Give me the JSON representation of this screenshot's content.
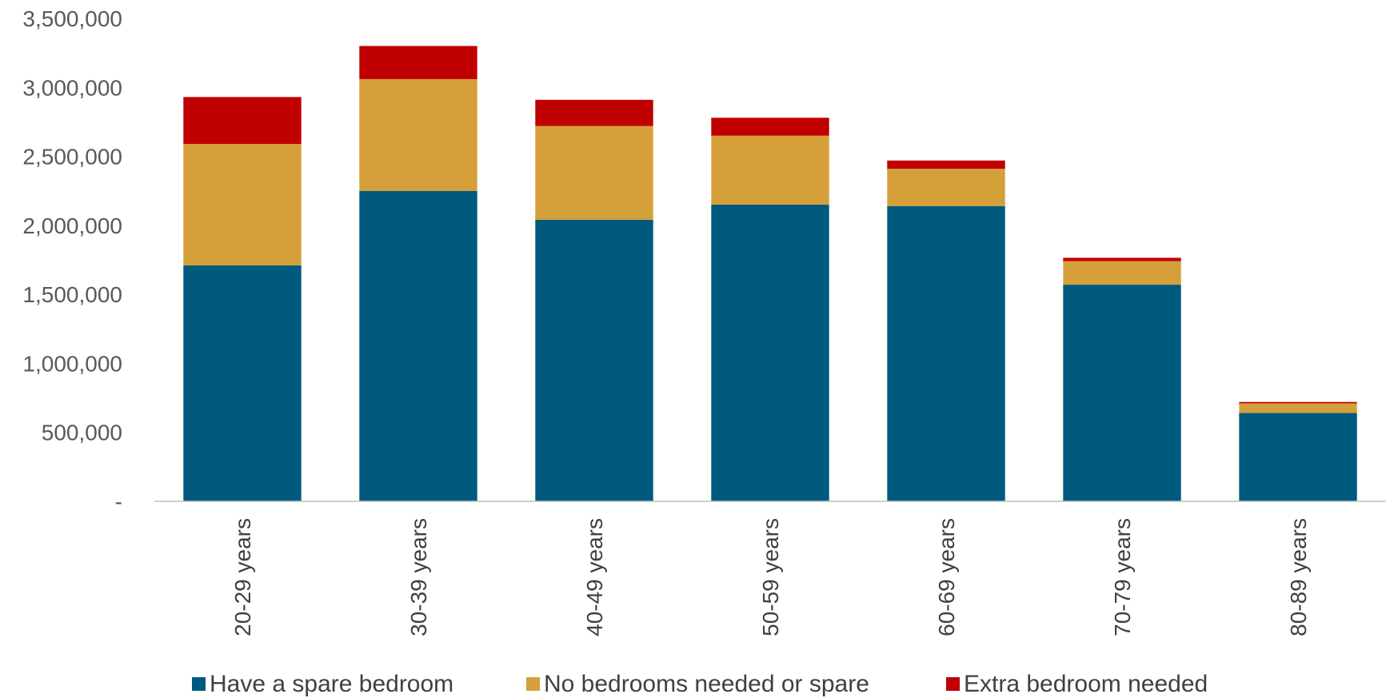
{
  "chart_data": {
    "type": "bar",
    "stacked": true,
    "categories": [
      "20-29 years",
      "30-39 years",
      "40-49 years",
      "50-59 years",
      "60-69 years",
      "70-79 years",
      "80-89 years"
    ],
    "series": [
      {
        "name": "Have a spare bedroom",
        "color": "#005A7E",
        "values": [
          1710000,
          2250000,
          2040000,
          2150000,
          2140000,
          1570000,
          640000
        ]
      },
      {
        "name": "No bedrooms needed or spare",
        "color": "#D5A03A",
        "values": [
          880000,
          810000,
          680000,
          500000,
          270000,
          170000,
          70000
        ]
      },
      {
        "name": "Extra bedroom needed",
        "color": "#C00000",
        "values": [
          340000,
          240000,
          190000,
          130000,
          60000,
          25000,
          10000
        ]
      }
    ],
    "yticks": [
      "-",
      "500,000",
      "1,000,000",
      "1,500,000",
      "2,000,000",
      "2,500,000",
      "3,000,000",
      "3,500,000"
    ],
    "ylim": [
      0,
      3500000
    ],
    "grid": false,
    "legend_position": "bottom",
    "title": "",
    "xlabel": "",
    "ylabel": ""
  }
}
